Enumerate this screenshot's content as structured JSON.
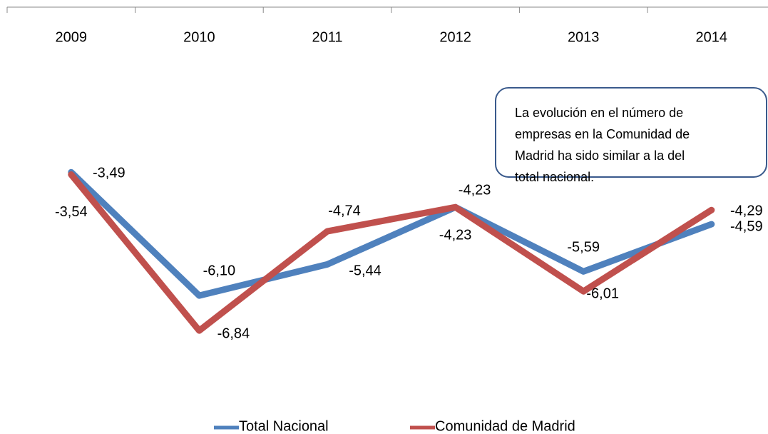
{
  "chart_data": {
    "type": "line",
    "categories": [
      "2009",
      "2010",
      "2011",
      "2012",
      "2013",
      "2014"
    ],
    "series": [
      {
        "name": "Total Nacional",
        "color": "#4f81bd",
        "values": [
          -3.49,
          -6.1,
          -5.44,
          -4.23,
          -5.59,
          -4.59
        ],
        "value_labels": [
          "-3,49",
          "-6,10",
          "-5,44",
          "-4,23",
          "-5,59",
          "-4,59"
        ]
      },
      {
        "name": "Comunidad de Madrid",
        "color": "#c0504d",
        "values": [
          -3.54,
          -6.84,
          -4.74,
          -4.23,
          -6.01,
          -4.29
        ],
        "value_labels": [
          "-3,54",
          "-6,84",
          "-4,74",
          "-4,23",
          "-6,01",
          "-4,29"
        ]
      }
    ],
    "ylim": [
      -8,
      0
    ],
    "legend": "bottom",
    "annotation": [
      "La evolución en el número de",
      "empresas en la Comunidad de",
      "Madrid ha sido similar a la del",
      "total nacional."
    ]
  }
}
